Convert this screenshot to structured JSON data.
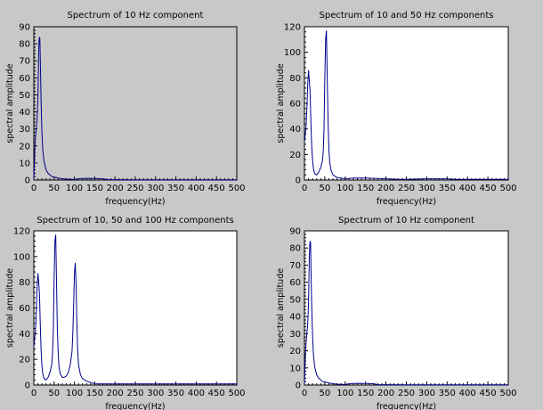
{
  "chart_data": [
    {
      "type": "line",
      "title": "Spectrum of 10 Hz component",
      "xlabel": "frequency(Hz)",
      "ylabel": "spectral amplitude",
      "xlim": [
        0,
        500
      ],
      "ylim": [
        0,
        90
      ],
      "xticks": [
        0,
        50,
        100,
        150,
        200,
        250,
        300,
        350,
        400,
        450,
        500
      ],
      "yticks": [
        0,
        10,
        20,
        30,
        40,
        50,
        60,
        70,
        80,
        90
      ],
      "plot_background": "#c8c8c8",
      "line_color": "#00008b",
      "series": [
        {
          "x": [
            0,
            2,
            4,
            6,
            8,
            10,
            11,
            12,
            13,
            14,
            15,
            16,
            18,
            20,
            22,
            25,
            30,
            35,
            40,
            45,
            50,
            55,
            60,
            70,
            80,
            100,
            110,
            120,
            130,
            150,
            170,
            180,
            200,
            250,
            300,
            350,
            400,
            450,
            500
          ],
          "y": [
            0,
            16,
            24,
            30,
            36,
            48,
            60,
            75,
            82,
            84,
            83,
            70,
            45,
            28,
            18,
            11,
            6,
            4,
            3,
            2,
            1.8,
            1.5,
            1.2,
            0.8,
            0.5,
            0.3,
            0.8,
            0.9,
            1,
            0.9,
            0.8,
            0.2,
            0.2,
            0.1,
            0.1,
            0.1,
            0.1,
            0.1,
            0.1
          ]
        }
      ]
    },
    {
      "type": "line",
      "title": "Spectrum of 10 and 50 Hz components",
      "xlabel": "frequency(Hz)",
      "ylabel": "spectral amplitude",
      "xlim": [
        0,
        500
      ],
      "ylim": [
        0,
        120
      ],
      "xticks": [
        0,
        50,
        100,
        150,
        200,
        250,
        300,
        350,
        400,
        450,
        500
      ],
      "yticks": [
        0,
        20,
        40,
        60,
        80,
        100,
        120
      ],
      "plot_background": "#ffffff",
      "line_color": "#00008b",
      "series": [
        {
          "x": [
            0,
            2,
            4,
            6,
            8,
            10,
            12,
            14,
            16,
            18,
            20,
            22,
            25,
            30,
            35,
            40,
            44,
            46,
            48,
            50,
            52,
            54,
            56,
            58,
            60,
            62,
            65,
            70,
            80,
            90,
            100,
            120,
            150,
            200,
            230,
            250,
            300,
            350,
            370,
            400,
            450,
            500
          ],
          "y": [
            30,
            36,
            42,
            55,
            75,
            86,
            78,
            68,
            44,
            26,
            15,
            9,
            5,
            4,
            6,
            10,
            15,
            22,
            40,
            80,
            110,
            117,
            80,
            45,
            24,
            14,
            8,
            4,
            2,
            1.5,
            1,
            1.5,
            1.5,
            1,
            0.5,
            0.5,
            1,
            1,
            0.5,
            0.5,
            0.5,
            0.5
          ]
        }
      ]
    },
    {
      "type": "line",
      "title": "Spectrum of 10, 50 and 100 Hz components",
      "xlabel": "frequency(Hz)",
      "ylabel": "spectral amplitude",
      "xlim": [
        0,
        500
      ],
      "ylim": [
        0,
        120
      ],
      "xticks": [
        0,
        50,
        100,
        150,
        200,
        250,
        300,
        350,
        400,
        450,
        500
      ],
      "yticks": [
        0,
        20,
        40,
        60,
        80,
        100,
        120
      ],
      "plot_background": "#ffffff",
      "line_color": "#00008b",
      "series": [
        {
          "x": [
            0,
            2,
            4,
            6,
            8,
            10,
            12,
            14,
            16,
            18,
            20,
            22,
            25,
            30,
            35,
            40,
            44,
            46,
            48,
            50,
            52,
            54,
            56,
            58,
            60,
            62,
            65,
            70,
            75,
            80,
            85,
            90,
            94,
            96,
            98,
            100,
            102,
            104,
            106,
            108,
            110,
            115,
            120,
            130,
            140,
            150,
            200,
            250,
            300,
            350,
            400,
            450,
            500
          ],
          "y": [
            30,
            36,
            42,
            55,
            75,
            87,
            80,
            70,
            46,
            27,
            15,
            9,
            5,
            4,
            6,
            10,
            16,
            24,
            42,
            82,
            112,
            117,
            80,
            44,
            24,
            14,
            9,
            6,
            6,
            7,
            10,
            16,
            26,
            40,
            62,
            86,
            95,
            80,
            50,
            28,
            16,
            8,
            5,
            3,
            2,
            1,
            0.8,
            0.8,
            0.8,
            0.8,
            0.8,
            0.8,
            0.8
          ]
        }
      ]
    },
    {
      "type": "line",
      "title": "Spectrum of 10 Hz component",
      "xlabel": "frequency(Hz)",
      "ylabel": "spectral amplitude",
      "xlim": [
        0,
        500
      ],
      "ylim": [
        0,
        90
      ],
      "xticks": [
        0,
        50,
        100,
        150,
        200,
        250,
        300,
        350,
        400,
        450,
        500
      ],
      "yticks": [
        0,
        10,
        20,
        30,
        40,
        50,
        60,
        70,
        80,
        90
      ],
      "plot_background": "#ffffff",
      "line_color": "#00008b",
      "series": [
        {
          "x": [
            0,
            2,
            4,
            6,
            8,
            10,
            11,
            12,
            13,
            14,
            15,
            16,
            18,
            20,
            22,
            25,
            30,
            35,
            40,
            45,
            50,
            55,
            60,
            70,
            80,
            100,
            110,
            120,
            130,
            150,
            170,
            180,
            200,
            250,
            300,
            350,
            400,
            450,
            500
          ],
          "y": [
            0,
            16,
            24,
            30,
            36,
            48,
            60,
            75,
            82,
            84,
            83,
            70,
            45,
            28,
            18,
            11,
            6,
            4,
            3,
            2,
            1.8,
            1.5,
            1.2,
            0.8,
            0.5,
            0.3,
            0.8,
            0.9,
            1,
            0.9,
            0.8,
            0.2,
            0.2,
            0.1,
            0.1,
            0.1,
            0.1,
            0.1,
            0.1
          ]
        }
      ]
    }
  ]
}
